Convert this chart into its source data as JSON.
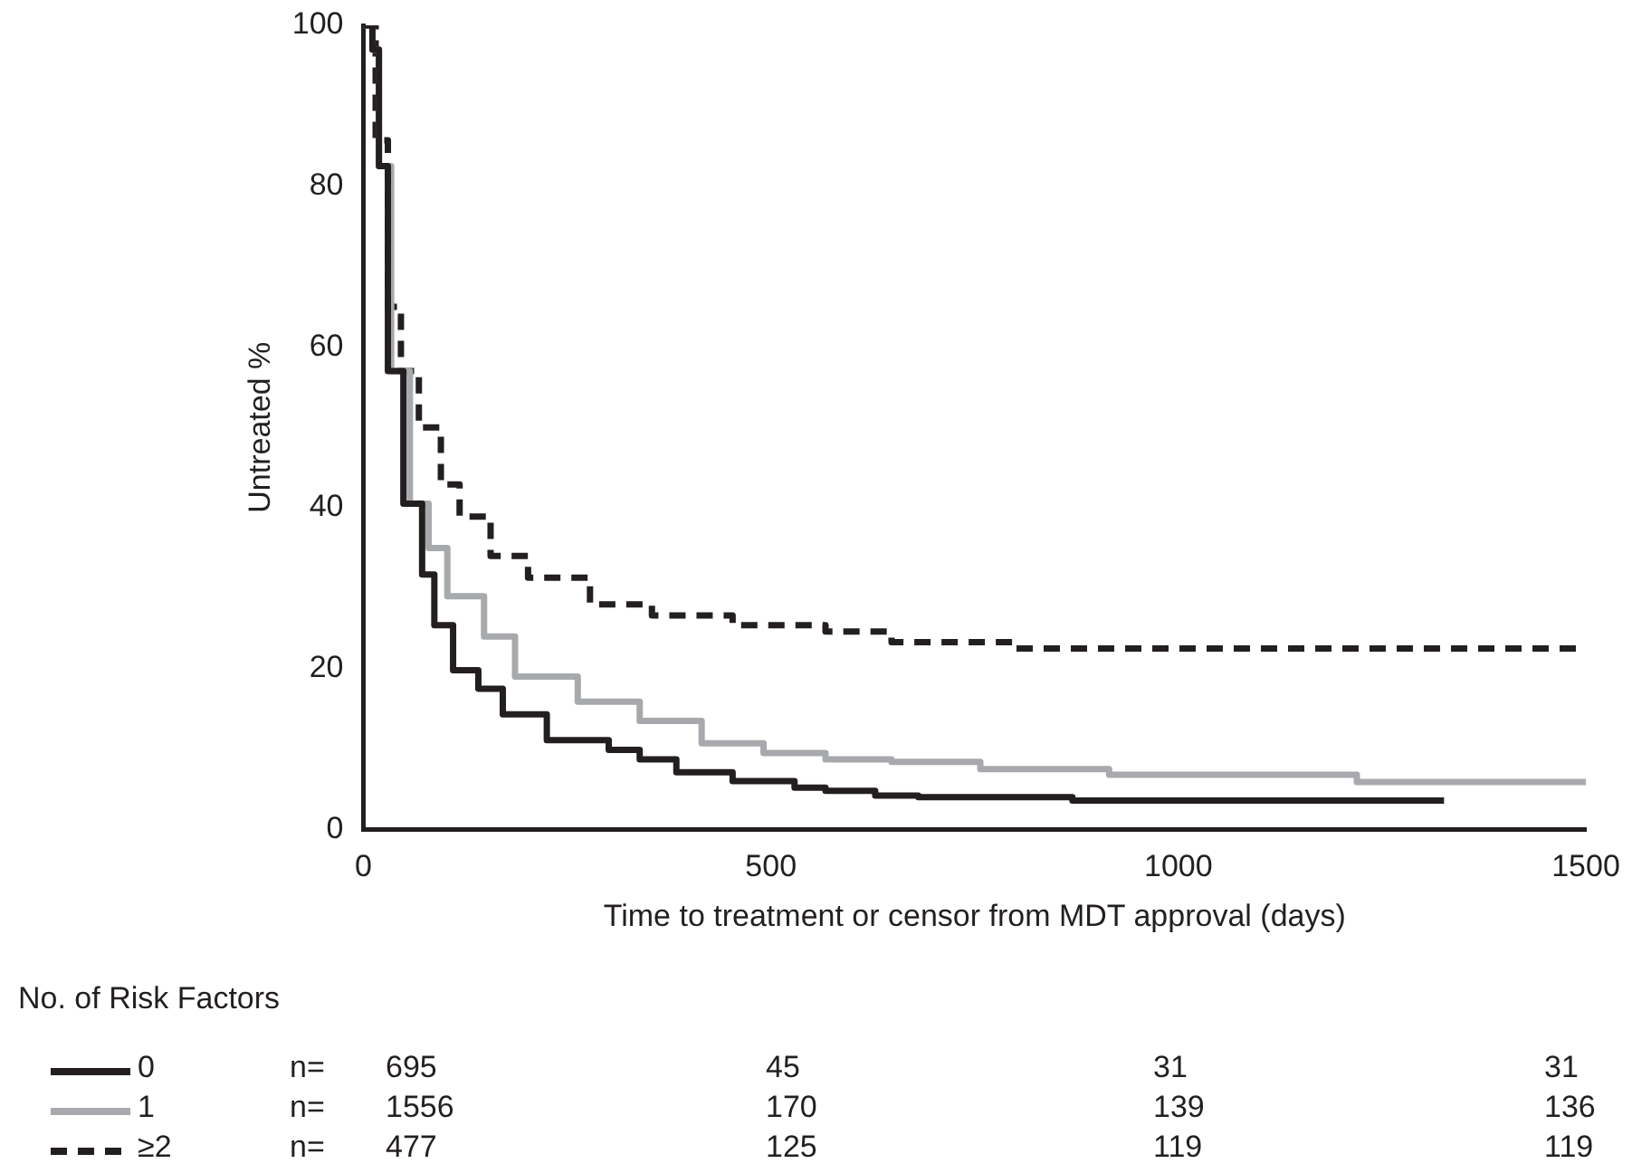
{
  "chart_data": {
    "type": "step",
    "xlabel": "Time to treatment or censor from MDT approval (days)",
    "ylabel": "Untreated %",
    "legend_title": "No. of Risk Factors",
    "legend": "bottom left",
    "grid": false,
    "marker": "none",
    "xlim": [
      0,
      1500
    ],
    "xticks": [
      0,
      500,
      1000,
      1500
    ],
    "ylim": [
      0,
      100
    ],
    "yticks": [
      0,
      20,
      40,
      60,
      80,
      100
    ],
    "series": [
      {
        "name": "0",
        "color": "#231f20",
        "line_style": "solid",
        "x": [
          0,
          11,
          19,
          30,
          49,
          72,
          87,
          110,
          141,
          171,
          225,
          301,
          339,
          384,
          453,
          529,
          567,
          628,
          681,
          870,
          1326
        ],
        "values": [
          100,
          97,
          82.5,
          57,
          40.5,
          31.7,
          25.4,
          19.8,
          17.5,
          14.3,
          11.1,
          9.9,
          8.7,
          7.1,
          6,
          5.2,
          4.8,
          4.2,
          4,
          3.6,
          3.6
        ]
      },
      {
        "name": "1",
        "color": "#a7a9ac",
        "line_style": "solid",
        "x": [
          0,
          11,
          19,
          34,
          57,
          80,
          103,
          148,
          186,
          263,
          339,
          415,
          491,
          567,
          648,
          757,
          915,
          1219,
          1500
        ],
        "values": [
          100,
          97,
          82.5,
          57,
          40.5,
          35,
          29,
          24,
          19,
          15.9,
          13.5,
          10.7,
          9.5,
          8.7,
          8.4,
          7.5,
          6.8,
          5.9,
          5.9
        ]
      },
      {
        "name": "≥2",
        "color": "#231f20",
        "line_style": "dashed",
        "x": [
          0,
          15,
          30,
          46,
          68,
          95,
          118,
          156,
          202,
          278,
          354,
          453,
          567,
          648,
          800,
          1490
        ],
        "values": [
          100,
          85.7,
          65,
          57,
          50,
          42.9,
          38.9,
          34,
          31.3,
          28,
          26.6,
          25.4,
          24.6,
          23.3,
          22.5,
          22.5
        ]
      }
    ],
    "annotations": [
      "n=",
      "695",
      "45",
      "31",
      "31",
      "n=",
      "1556",
      "170",
      "139",
      "136",
      "n=",
      "477",
      "125",
      "119",
      "119"
    ]
  }
}
